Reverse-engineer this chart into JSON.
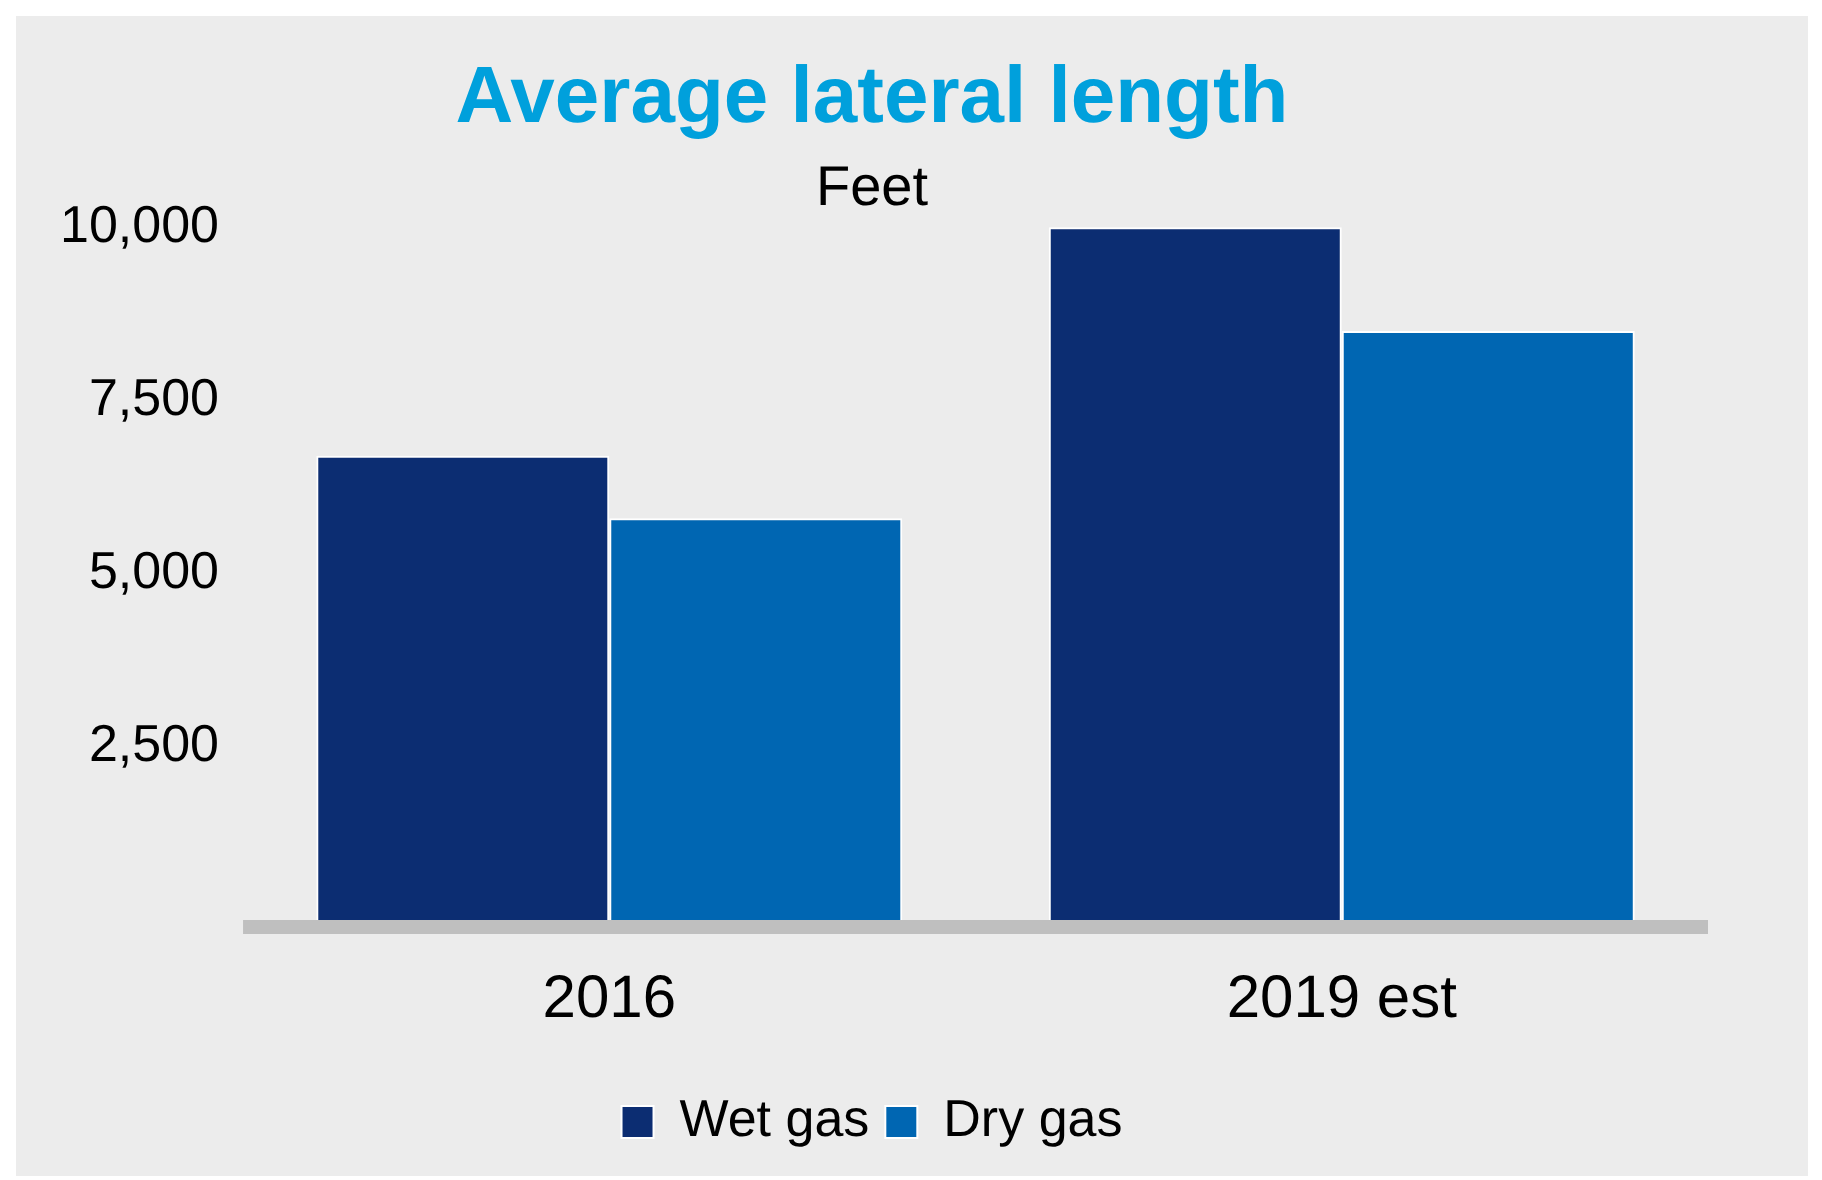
{
  "chart_data": {
    "type": "bar",
    "title": "Average lateral length",
    "subtitle": "Feet",
    "categories": [
      "2016",
      "2019 est"
    ],
    "series": [
      {
        "name": "Wet gas",
        "color": "#0c2d72",
        "values": [
          6700,
          10000
        ]
      },
      {
        "name": "Dry gas",
        "color": "#0066b2",
        "values": [
          5800,
          8500
        ]
      }
    ],
    "ylim": [
      0,
      10000
    ],
    "yticks": [
      {
        "value": 2500,
        "label": "2,500"
      },
      {
        "value": 5000,
        "label": "5,000"
      },
      {
        "value": 7500,
        "label": "7,500"
      },
      {
        "value": 10000,
        "label": "10,000"
      }
    ],
    "grid": false,
    "legend": "bottom"
  }
}
